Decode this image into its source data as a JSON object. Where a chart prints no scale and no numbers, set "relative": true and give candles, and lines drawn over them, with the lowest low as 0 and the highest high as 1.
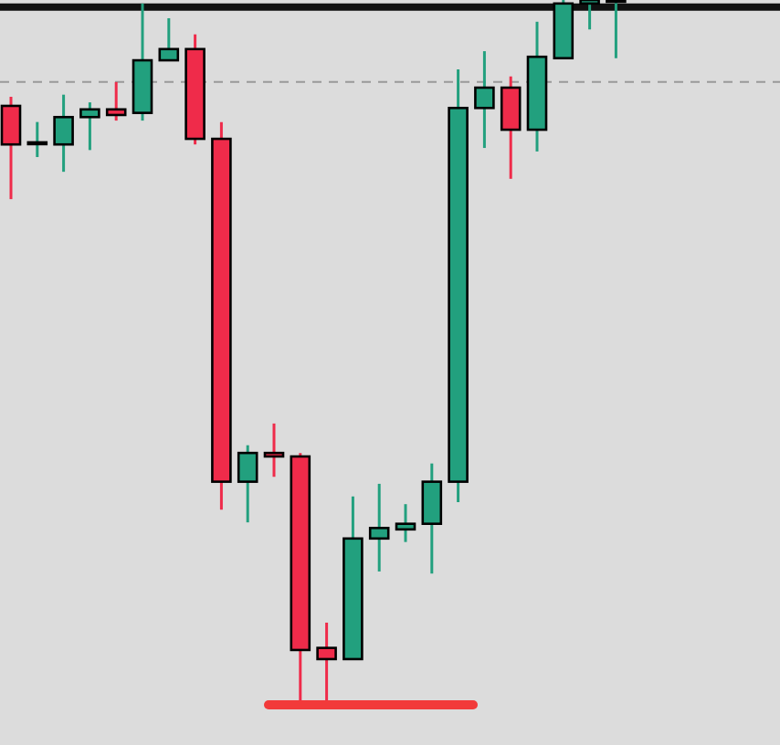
{
  "chart_data": {
    "type": "candlestick",
    "relative": true,
    "categories": [
      null,
      null,
      null,
      null,
      null,
      null,
      null,
      null,
      null,
      null,
      null,
      null,
      null,
      null,
      null,
      null,
      null,
      null,
      null,
      null,
      null,
      null,
      null,
      null
    ],
    "ohlc": [
      [
        0.849,
        0.862,
        0.716,
        0.794
      ],
      [
        0.797,
        0.826,
        0.776,
        0.797
      ],
      [
        0.794,
        0.865,
        0.755,
        0.833
      ],
      [
        0.833,
        0.854,
        0.786,
        0.844
      ],
      [
        0.844,
        0.883,
        0.828,
        0.836
      ],
      [
        0.839,
        0.995,
        0.828,
        0.914
      ],
      [
        0.914,
        0.974,
        0.914,
        0.93
      ],
      [
        0.93,
        0.951,
        0.794,
        0.802
      ],
      [
        0.802,
        0.826,
        0.273,
        0.313
      ],
      [
        0.313,
        0.365,
        0.255,
        0.354
      ],
      [
        0.354,
        0.396,
        0.32,
        0.349
      ],
      [
        0.349,
        0.354,
        0,
        0.073
      ],
      [
        0.076,
        0.112,
        0,
        0.06
      ],
      [
        0.06,
        0.292,
        0.06,
        0.232
      ],
      [
        0.232,
        0.31,
        0.185,
        0.247
      ],
      [
        0.245,
        0.281,
        0.227,
        0.253
      ],
      [
        0.253,
        0.339,
        0.182,
        0.313
      ],
      [
        0.313,
        0.901,
        0.284,
        0.846
      ],
      [
        0.846,
        0.927,
        0.789,
        0.875
      ],
      [
        0.875,
        0.891,
        0.745,
        0.815
      ],
      [
        0.815,
        0.969,
        0.784,
        0.919
      ],
      [
        0.917,
        1,
        0.917,
        0.995
      ],
      [
        0.995,
        1,
        0.958,
        1
      ],
      [
        1,
        1,
        0.917,
        1
      ]
    ],
    "colors": [
      "#ef2b4a",
      "#22a07e",
      "#22a07e",
      "#22a07e",
      "#ef2b4a",
      "#22a07e",
      "#22a07e",
      "#ef2b4a",
      "#ef2b4a",
      "#22a07e",
      "#ef2b4a",
      "#ef2b4a",
      "#ef2b4a",
      "#22a07e",
      "#22a07e",
      "#22a07e",
      "#22a07e",
      "#22a07e",
      "#22a07e",
      "#ef2b4a",
      "#22a07e",
      "#22a07e",
      "#22a07e",
      "#22a07e"
    ],
    "ref_lines": [
      {
        "axis": "y",
        "value": 0.99,
        "color": "#111111",
        "line_style": "solid"
      },
      {
        "axis": "y",
        "value": 0.883,
        "color": "#999999",
        "line_style": "dashed"
      }
    ]
  }
}
